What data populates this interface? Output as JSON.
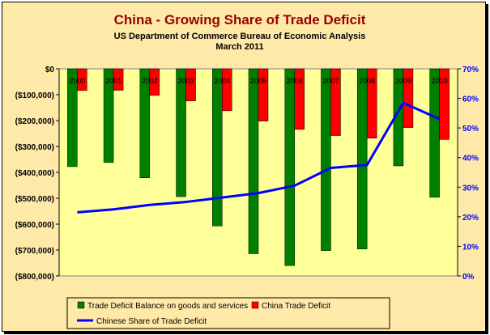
{
  "chart_data": {
    "type": "bar",
    "title": "China - Growing Share of Trade Deficit",
    "subtitle": "US Department of Commerce Bureau of Economic Analysis",
    "subtitle2": "March 2011",
    "categories": [
      "2000",
      "2001",
      "2002",
      "2003",
      "2004",
      "2005",
      "2006",
      "2007",
      "2008",
      "2009",
      "2010"
    ],
    "series": [
      {
        "name": "Trade Deficit Balance on goods and services",
        "type": "bar",
        "axis": "left",
        "values": [
          -378000,
          -362000,
          -421000,
          -494000,
          -607000,
          -714000,
          -760000,
          -702000,
          -696000,
          -375000,
          -496000
        ]
      },
      {
        "name": "China Trade Deficit",
        "type": "bar",
        "axis": "left",
        "values": [
          -84000,
          -83000,
          -103000,
          -124000,
          -162000,
          -202000,
          -234000,
          -258000,
          -268000,
          -227000,
          -273000
        ]
      },
      {
        "name": "Chinese Share of Trade Deficit",
        "type": "line",
        "axis": "right",
        "values": [
          21.5,
          22.5,
          24,
          25,
          26.5,
          28,
          30.5,
          36.5,
          37.5,
          58.5,
          53
        ]
      }
    ],
    "y_left": {
      "min": -800000,
      "max": 0,
      "step": 100000,
      "tick_labels": [
        "$0",
        "($100,000)",
        "($200,000)",
        "($300,000)",
        "($400,000)",
        "($500,000)",
        "($600,000)",
        "($700,000)",
        "($800,000)"
      ]
    },
    "y_right": {
      "min": 0,
      "max": 70,
      "step": 10,
      "tick_labels": [
        "70%",
        "60%",
        "50%",
        "40%",
        "30%",
        "20%",
        "10%",
        "0%"
      ]
    },
    "colors": {
      "green": "#008000",
      "red": "#ff0000",
      "blue": "#0000ff",
      "plot_bg": "#ffff99",
      "title": "#990000",
      "chart_bg": "#ffe9a8"
    },
    "legend_position": "bottom",
    "grid": false
  }
}
